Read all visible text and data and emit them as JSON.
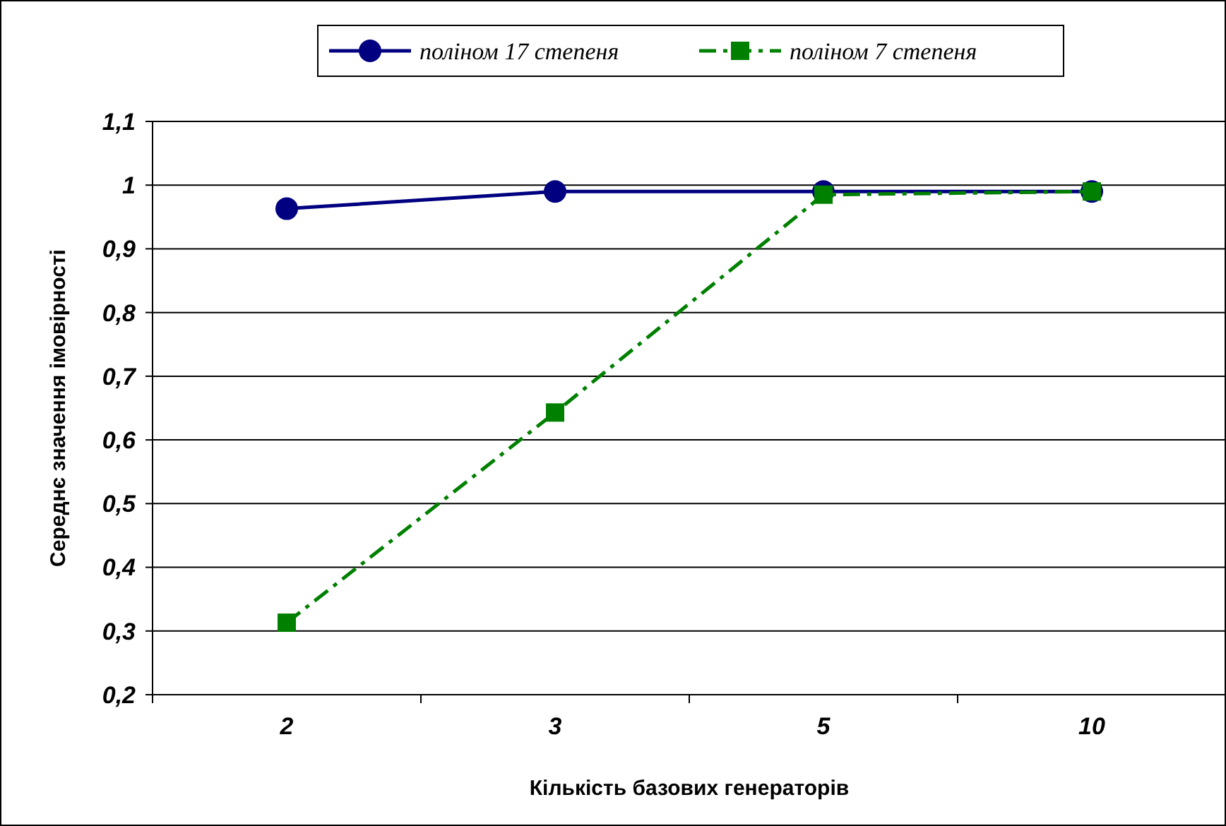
{
  "chart_data": {
    "type": "line",
    "xlabel": "Кількість базових генераторів",
    "ylabel": "Середнє значення імовірності",
    "categories": [
      "2",
      "3",
      "5",
      "10"
    ],
    "series": [
      {
        "name": "поліном 17 степеня",
        "color": "#000080",
        "values": [
          0.963,
          0.99,
          0.99,
          0.99
        ],
        "marker": "circle",
        "line_style": "solid"
      },
      {
        "name": "поліном 7 степеня",
        "color": "#008000",
        "values": [
          0.313,
          0.643,
          0.985,
          0.99
        ],
        "marker": "square",
        "line_style": "dashdot"
      }
    ],
    "ylim": [
      0.2,
      1.1
    ],
    "yticks": [
      {
        "value": 0.2,
        "label": "0,2"
      },
      {
        "value": 0.3,
        "label": "0,3"
      },
      {
        "value": 0.4,
        "label": "0,4"
      },
      {
        "value": 0.5,
        "label": "0,5"
      },
      {
        "value": 0.6,
        "label": "0,6"
      },
      {
        "value": 0.7,
        "label": "0,7"
      },
      {
        "value": 0.8,
        "label": "0,8"
      },
      {
        "value": 0.9,
        "label": "0,9"
      },
      {
        "value": 1,
        "label": "1"
      },
      {
        "value": 1.1,
        "label": "1,1"
      }
    ],
    "grid": "y",
    "legend": "top"
  }
}
